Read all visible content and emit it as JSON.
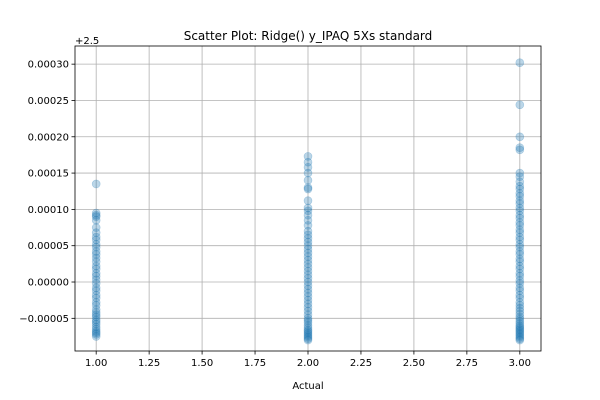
{
  "chart_data": {
    "type": "scatter",
    "title": "Scatter Plot: Ridge() y_IPAQ 5Xs standard",
    "xlabel": "Actual",
    "ylabel": "",
    "y_offset_label": "+2.5",
    "xlim": [
      0.9,
      3.1
    ],
    "ylim": [
      -9.5e-05,
      0.000325
    ],
    "x_ticks": [
      1.0,
      1.25,
      1.5,
      1.75,
      2.0,
      2.25,
      2.5,
      2.75,
      3.0
    ],
    "x_tick_labels": [
      "1.00",
      "1.25",
      "1.50",
      "1.75",
      "2.00",
      "2.25",
      "2.50",
      "2.75",
      "3.00"
    ],
    "y_ticks": [
      -5e-05,
      0.0,
      5e-05,
      0.0001,
      0.00015,
      0.0002,
      0.00025,
      0.0003
    ],
    "y_tick_labels": [
      "−0.00005",
      "0.00000",
      "0.00005",
      "0.00010",
      "0.00015",
      "0.00020",
      "0.00025",
      "0.00030"
    ],
    "grid": true,
    "marker_color": "#1f77b4",
    "marker_alpha": 0.3,
    "series": [
      {
        "x": [
          1,
          1,
          1,
          1,
          1,
          1,
          1,
          1,
          1,
          1,
          1,
          1,
          1,
          1,
          1,
          1,
          1,
          1,
          1,
          1,
          1,
          1,
          1,
          1,
          1,
          1,
          1,
          1,
          1,
          1,
          1,
          1,
          1,
          1,
          1,
          1,
          1,
          1,
          1,
          1
        ],
        "y": [
          0.000135,
          9.5e-05,
          9.2e-05,
          9e-05,
          8.5e-05,
          7.5e-05,
          6.8e-05,
          6.2e-05,
          5.8e-05,
          5.2e-05,
          4.8e-05,
          4.2e-05,
          3.8e-05,
          3.3e-05,
          2.8e-05,
          2.2e-05,
          1.8e-05,
          1.2e-05,
          8e-06,
          3e-06,
          -2e-06,
          -8e-06,
          -1.2e-05,
          -1.8e-05,
          -2.2e-05,
          -2.8e-05,
          -3.2e-05,
          -3.8e-05,
          -4.2e-05,
          -4.5e-05,
          -4.8e-05,
          -5.2e-05,
          -5.5e-05,
          -5.8e-05,
          -6.2e-05,
          -6.5e-05,
          -6.8e-05,
          -7e-05,
          -7.2e-05,
          -7.5e-05
        ]
      },
      {
        "x": [
          2,
          2,
          2,
          2,
          2,
          2,
          2,
          2,
          2,
          2,
          2,
          2,
          2,
          2,
          2,
          2,
          2,
          2,
          2,
          2,
          2,
          2,
          2,
          2,
          2,
          2,
          2,
          2,
          2,
          2,
          2,
          2,
          2,
          2,
          2,
          2,
          2,
          2,
          2,
          2,
          2,
          2,
          2,
          2,
          2,
          2,
          2,
          2,
          2,
          2
        ],
        "y": [
          0.000173,
          0.000165,
          0.000158,
          0.00015,
          0.00014,
          0.00013,
          0.000128,
          0.000112,
          0.000102,
          9.8e-05,
          9.2e-05,
          8.5e-05,
          7.8e-05,
          7e-05,
          6.5e-05,
          6e-05,
          5.5e-05,
          5e-05,
          4.5e-05,
          4e-05,
          3.5e-05,
          3e-05,
          2.5e-05,
          2e-05,
          1.5e-05,
          1e-05,
          5e-06,
          0.0,
          -5e-06,
          -1e-05,
          -1.5e-05,
          -2e-05,
          -2.5e-05,
          -3e-05,
          -3.5e-05,
          -4e-05,
          -4.5e-05,
          -5e-05,
          -5.3e-05,
          -5.6e-05,
          -6e-05,
          -6.3e-05,
          -6.6e-05,
          -6.8e-05,
          -7e-05,
          -7.2e-05,
          -7.4e-05,
          -7.6e-05,
          -7.8e-05,
          -8e-05
        ]
      },
      {
        "x": [
          3,
          3,
          3,
          3,
          3,
          3,
          3,
          3,
          3,
          3,
          3,
          3,
          3,
          3,
          3,
          3,
          3,
          3,
          3,
          3,
          3,
          3,
          3,
          3,
          3,
          3,
          3,
          3,
          3,
          3,
          3,
          3,
          3,
          3,
          3,
          3,
          3,
          3,
          3,
          3,
          3,
          3,
          3,
          3,
          3,
          3,
          3,
          3,
          3,
          3,
          3,
          3,
          3,
          3,
          3,
          3,
          3,
          3,
          3,
          3
        ],
        "y": [
          0.000302,
          0.000244,
          0.0002,
          0.000185,
          0.000182,
          0.00015,
          0.000145,
          0.000138,
          0.000132,
          0.000128,
          0.000122,
          0.000118,
          0.000112,
          0.000108,
          0.000102,
          9.8e-05,
          9.2e-05,
          8.8e-05,
          8.2e-05,
          7.8e-05,
          7.2e-05,
          6.8e-05,
          6.2e-05,
          5.8e-05,
          5.2e-05,
          4.8e-05,
          4.2e-05,
          3.8e-05,
          3.2e-05,
          2.8e-05,
          2.2e-05,
          1.8e-05,
          1.2e-05,
          8e-06,
          2e-06,
          -2e-06,
          -8e-06,
          -1.2e-05,
          -1.8e-05,
          -2.2e-05,
          -2.8e-05,
          -3.2e-05,
          -3.6e-05,
          -4e-05,
          -4.4e-05,
          -4.8e-05,
          -5.1e-05,
          -5.4e-05,
          -5.7e-05,
          -6e-05,
          -6.2e-05,
          -6.4e-05,
          -6.6e-05,
          -6.8e-05,
          -7e-05,
          -7.2e-05,
          -7.4e-05,
          -7.6e-05,
          -7.8e-05,
          -8e-05
        ]
      }
    ]
  }
}
